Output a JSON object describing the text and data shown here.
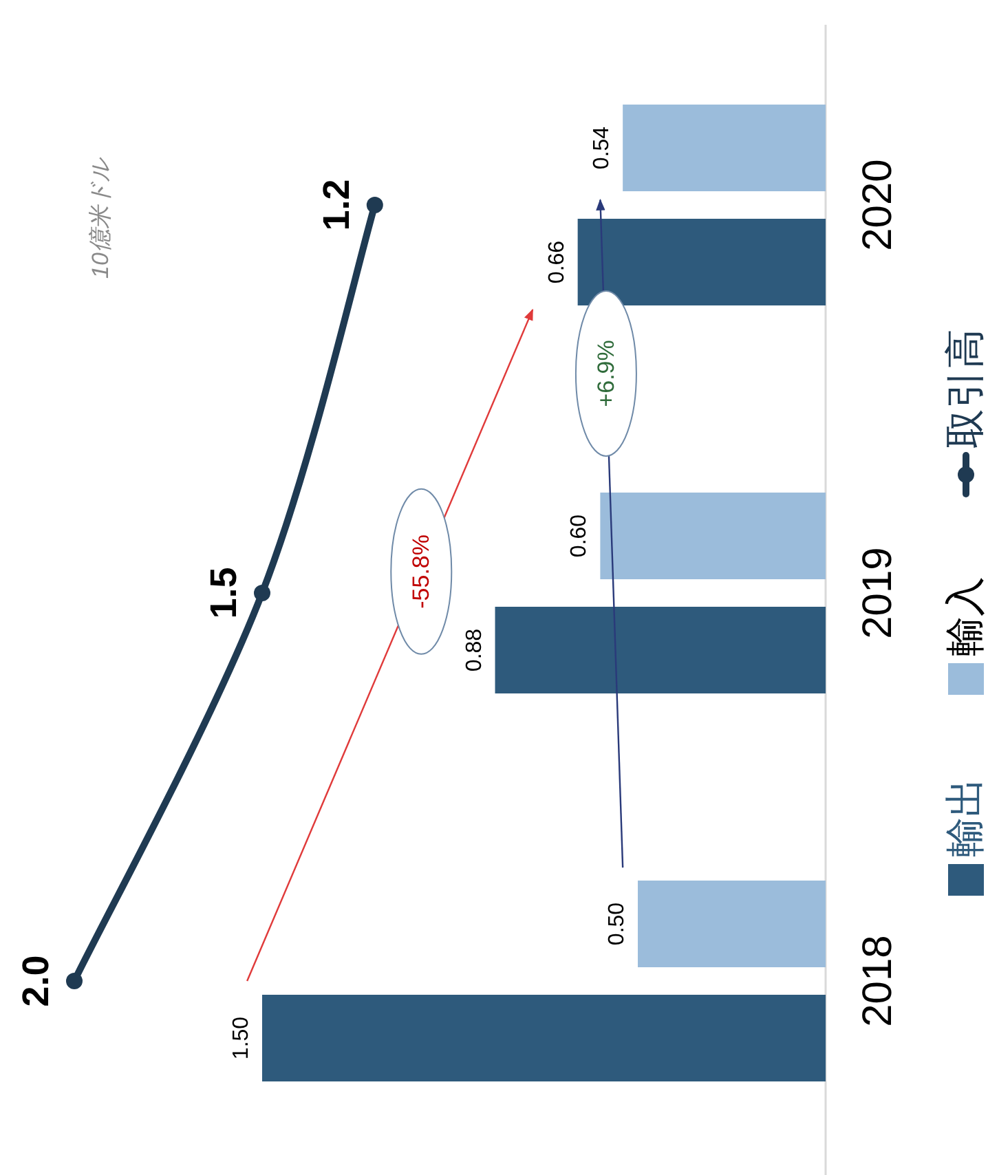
{
  "chart_data": {
    "type": "bar",
    "orientation": "horizontal",
    "categories": [
      "2020",
      "2019",
      "2018"
    ],
    "series": [
      {
        "name": "輸出",
        "color": "#2e5a7c",
        "values": [
          0.66,
          0.88,
          1.5
        ],
        "value_labels": [
          "0.66",
          "0.88",
          "1.50"
        ]
      },
      {
        "name": "輸入",
        "color": "#9bbcdb",
        "values": [
          0.54,
          0.6,
          0.5
        ],
        "value_labels": [
          "0.54",
          "0.60",
          "0.50"
        ]
      },
      {
        "name": "取引高",
        "type": "line",
        "color": "#1f3a52",
        "values": [
          1.2,
          1.5,
          2.0
        ],
        "value_labels": [
          "1.2",
          "1.5",
          "2.0"
        ]
      }
    ],
    "annotations": [
      "10億米ドル",
      "-55.8%",
      "+6.9%"
    ],
    "marker": "circle",
    "tick_labels": "y",
    "legend": "right"
  }
}
